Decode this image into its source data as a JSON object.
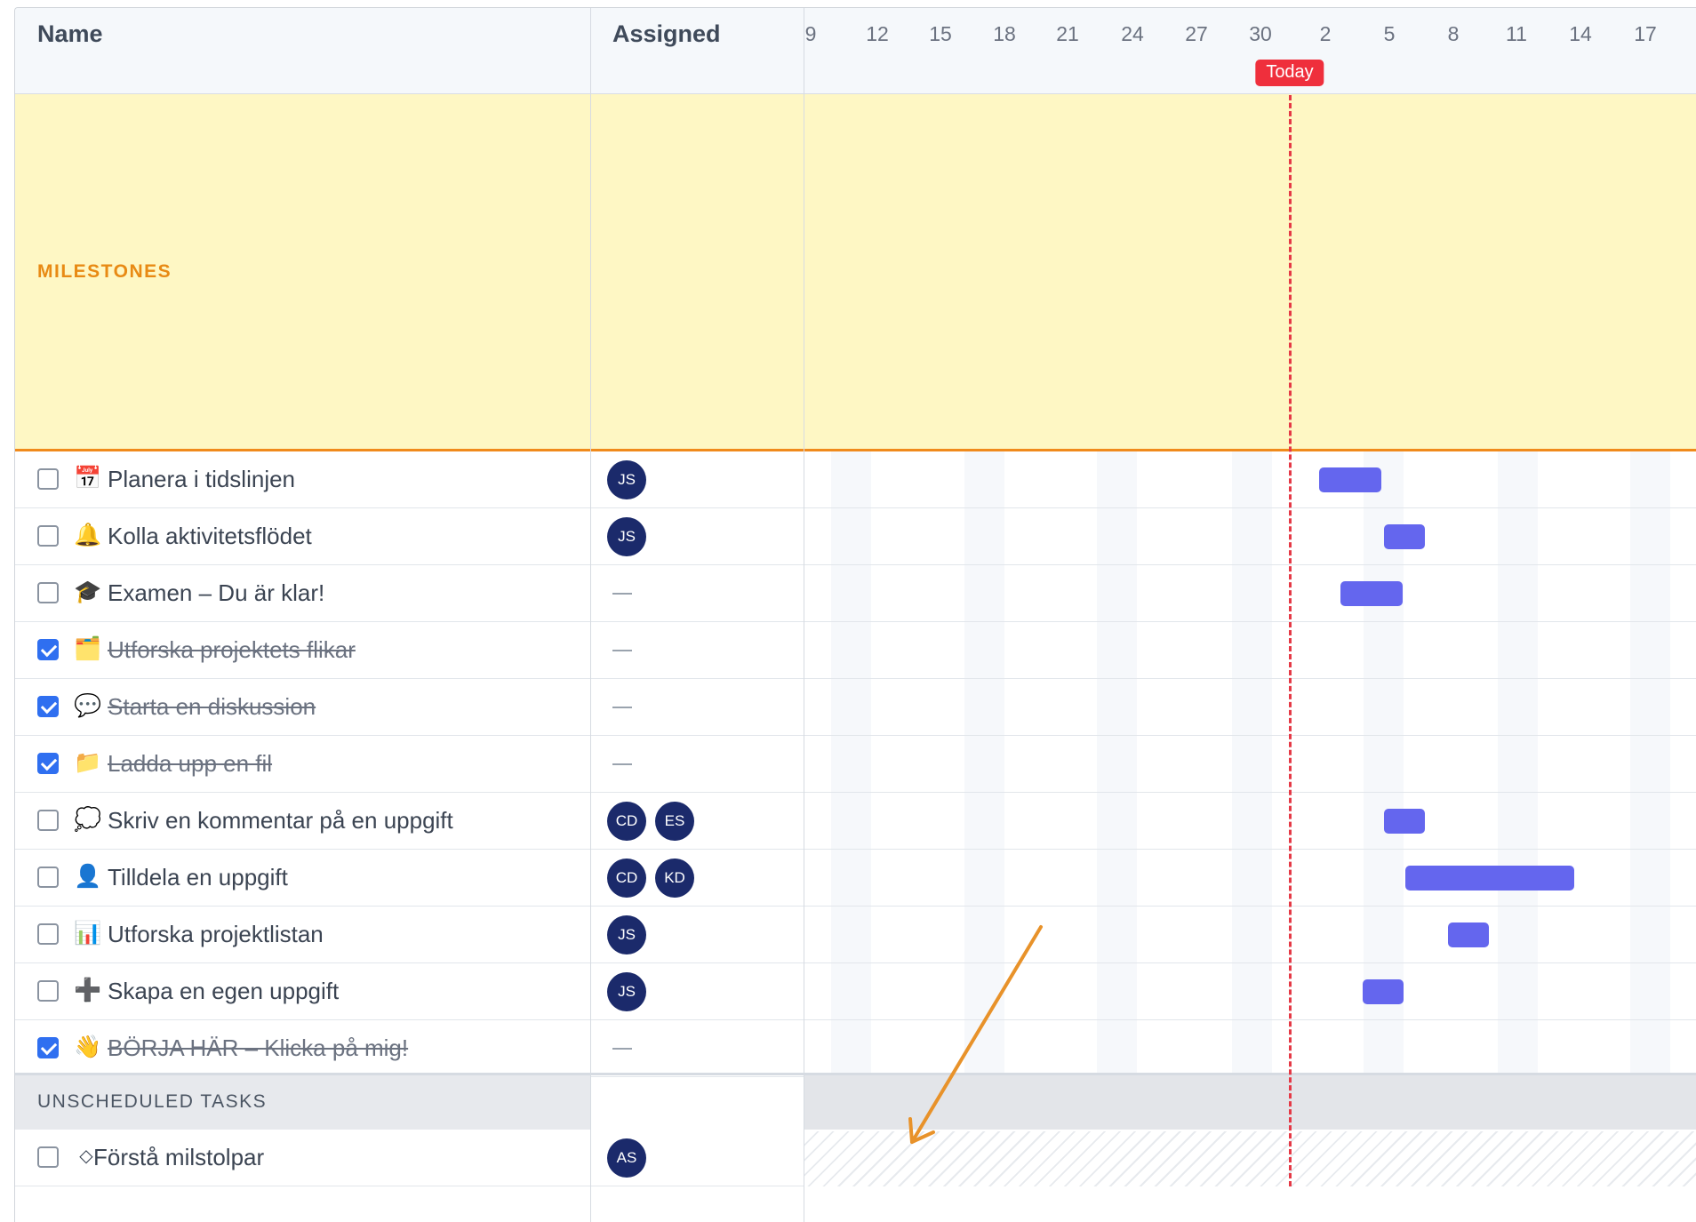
{
  "header": {
    "name_label": "Name",
    "assigned_label": "Assigned",
    "dates": [
      "9",
      "12",
      "15",
      "18",
      "21",
      "24",
      "27",
      "30",
      "2",
      "5",
      "8",
      "11",
      "14",
      "17"
    ],
    "today_label": "Today"
  },
  "milestones": {
    "label": "MILESTONES"
  },
  "tasks": [
    {
      "icon": "📅",
      "icon_name": "calendar-icon",
      "name": "Planera i tidslinjen",
      "done": false,
      "assignees": [
        "JS"
      ]
    },
    {
      "icon": "🔔",
      "icon_name": "bell-icon",
      "name": "Kolla aktivitetsflödet",
      "done": false,
      "assignees": [
        "JS"
      ]
    },
    {
      "icon": "🎓",
      "icon_name": "graduation-cap-icon",
      "name": "Examen – Du är klar!",
      "done": false,
      "assignees": []
    },
    {
      "icon": "🗂️",
      "icon_name": "card-index-dividers-icon",
      "name": "Utforska projektets flikar",
      "done": true,
      "assignees": []
    },
    {
      "icon": "💬",
      "icon_name": "speech-bubble-icon",
      "name": "Starta en diskussion",
      "done": true,
      "assignees": []
    },
    {
      "icon": "📁",
      "icon_name": "folder-icon",
      "name": "Ladda upp en fil",
      "done": true,
      "assignees": []
    },
    {
      "icon": "💭",
      "icon_name": "thought-bubble-icon",
      "name": "Skriv en kommentar på en uppgift",
      "done": false,
      "assignees": [
        "CD",
        "ES"
      ]
    },
    {
      "icon": "👤",
      "icon_name": "user-icon",
      "name": "Tilldela en uppgift",
      "done": false,
      "assignees": [
        "CD",
        "KD"
      ]
    },
    {
      "icon": "📊",
      "icon_name": "bar-chart-icon",
      "name": "Utforska projektlistan",
      "done": false,
      "assignees": [
        "JS"
      ]
    },
    {
      "icon": "➕",
      "icon_name": "plus-icon",
      "name": "Skapa en egen uppgift",
      "done": false,
      "assignees": [
        "JS"
      ]
    },
    {
      "icon": "👋",
      "icon_name": "waving-hand-icon",
      "name": "BÖRJA HÄR – Klicka på mig!",
      "done": true,
      "assignees": []
    }
  ],
  "unscheduled": {
    "label": "UNSCHEDULED TASKS",
    "tasks": [
      {
        "icon": "◇",
        "icon_name": "diamond-icon",
        "name": "Förstå milstolpar",
        "done": false,
        "assignees": [
          "AS"
        ]
      }
    ]
  },
  "colors": {
    "bar": "#6466ee",
    "today": "#ef2f3c",
    "milestone_bg": "#fef7c4",
    "milestone_accent": "#f08a1c",
    "checkbox_checked": "#2f6ff0",
    "avatar": "#1b2a6b",
    "annotation_arrow": "#e8922a"
  }
}
